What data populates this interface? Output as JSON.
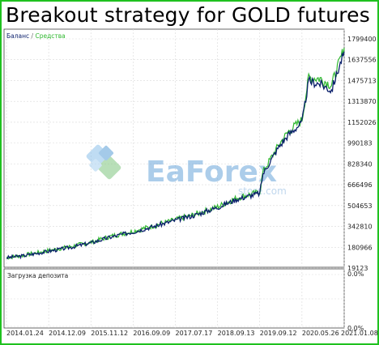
{
  "title": "Breakout strategy for GOLD futures",
  "legend": {
    "balance": "Баланс",
    "separator": " / ",
    "equity": "Средства"
  },
  "watermark": {
    "brand": "EaForex",
    "site": "store.com"
  },
  "colors": {
    "balance": "#0a1f6b",
    "equity": "#2fb82f",
    "grid": "#d9d9d9",
    "frame": "#1fc11f"
  },
  "chart_data": {
    "type": "line",
    "title": "Breakout strategy for GOLD futures",
    "x_tick_labels": [
      "2014.01.24",
      "2014.12.09",
      "2015.11.12",
      "2016.09.09",
      "2017.07.17",
      "2018.09.13",
      "2019.09.12",
      "2020.05.26",
      "2021.01.08"
    ],
    "y_ticks": [
      19123,
      180966,
      342810,
      504653,
      666496,
      828340,
      990183,
      1152026,
      1313870,
      1475713,
      1637556,
      1799400
    ],
    "ylim": [
      19123,
      1799400
    ],
    "grid": true,
    "legend_position": "top-left",
    "series": [
      {
        "name": "Баланс",
        "x": [
          "2014.01.24",
          "2014.06",
          "2014.12.09",
          "2015.06",
          "2015.11.12",
          "2016.04",
          "2016.09.09",
          "2017.02",
          "2017.07.17",
          "2018.02",
          "2018.09.13",
          "2019.03",
          "2019.09.12",
          "2019.10",
          "2020.01",
          "2020.03",
          "2020.05.26",
          "2020.07",
          "2020.09",
          "2020.11",
          "2021.01.08"
        ],
        "values": [
          100000,
          115000,
          150000,
          180000,
          215000,
          260000,
          300000,
          340000,
          390000,
          430000,
          490000,
          555000,
          600000,
          750000,
          950000,
          1050000,
          1150000,
          1470000,
          1450000,
          1400000,
          1700000
        ]
      },
      {
        "name": "Средства",
        "x": [
          "2014.01.24",
          "2014.06",
          "2014.12.09",
          "2015.06",
          "2015.11.12",
          "2016.04",
          "2016.09.09",
          "2017.02",
          "2017.07.17",
          "2018.02",
          "2018.09.13",
          "2019.03",
          "2019.09.12",
          "2019.10",
          "2020.01",
          "2020.03",
          "2020.05.26",
          "2020.07",
          "2020.09",
          "2020.11",
          "2021.01.08"
        ],
        "values": [
          100000,
          118000,
          155000,
          185000,
          220000,
          265000,
          305000,
          345000,
          395000,
          435000,
          495000,
          565000,
          610000,
          765000,
          965000,
          1075000,
          1170000,
          1500000,
          1490000,
          1440000,
          1730000
        ]
      }
    ],
    "subchart": {
      "label": "Загрузка депозита",
      "y_tick_labels": [
        "0.0%",
        "0.0%"
      ]
    }
  }
}
